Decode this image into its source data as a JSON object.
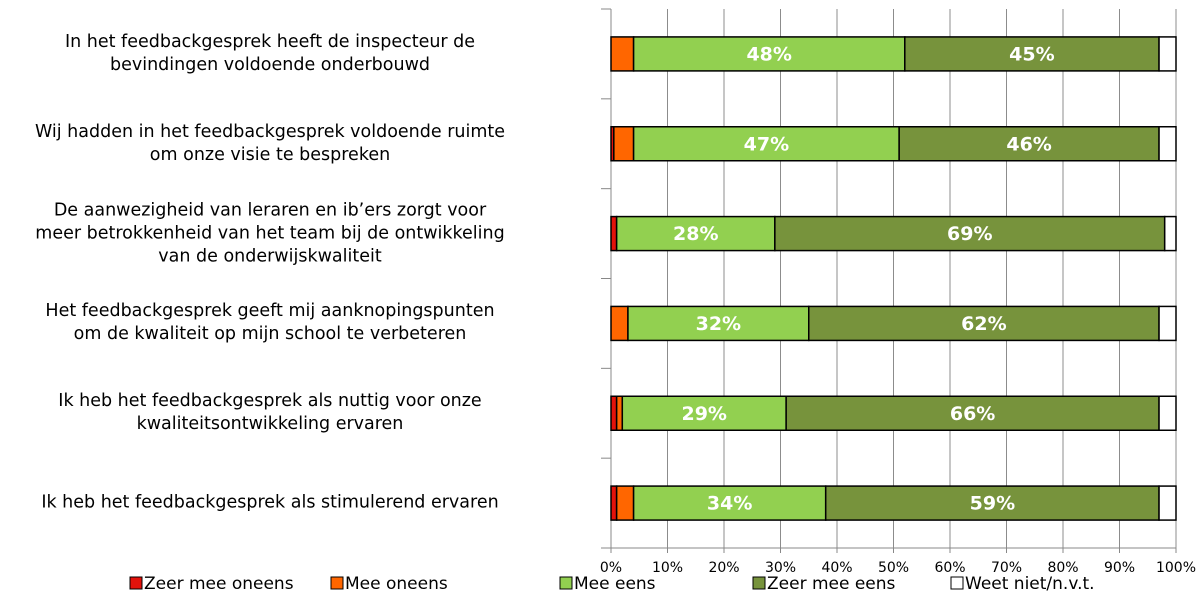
{
  "chart_data": {
    "type": "stacked-bar-horizontal",
    "categories": [
      "In het feedbackgesprek heeft de inspecteur de\nbevindingen voldoende onderbouwd",
      "Wij hadden in het feedbackgesprek voldoende ruimte\nom onze visie te bespreken",
      "De aanwezigheid van leraren en ib’ers zorgt voor\nmeer betrokkenheid van het team bij de ontwikkeling\nvan de onderwijskwaliteit",
      "Het feedbackgesprek geeft mij aanknopingspunten\nom de kwaliteit op mijn school te verbeteren",
      "Ik heb het feedbackgesprek als nuttig voor onze\nkwaliteitsontwikkeling ervaren",
      "Ik heb het feedbackgesprek als stimulerend ervaren"
    ],
    "series": [
      {
        "name": "Zeer mee oneens",
        "color": "#e3120b",
        "values": [
          0,
          0.5,
          1,
          0,
          1,
          1
        ]
      },
      {
        "name": "Mee oneens",
        "color": "#ff6600",
        "values": [
          4,
          3.5,
          0,
          3,
          1,
          3
        ]
      },
      {
        "name": "Mee eens",
        "color": "#92d050",
        "values": [
          48,
          47,
          28,
          32,
          29,
          34
        ],
        "value_labels": [
          "48%",
          "47%",
          "28%",
          "32%",
          "29%",
          "34%"
        ]
      },
      {
        "name": "Zeer mee eens",
        "color": "#77933c",
        "values": [
          45,
          46,
          69,
          62,
          66,
          59
        ],
        "value_labels": [
          "45%",
          "46%",
          "69%",
          "62%",
          "66%",
          "59%"
        ]
      },
      {
        "name": "Weet niet/n.v.t.",
        "color": "#ffffff",
        "values": [
          3,
          3,
          2,
          3,
          3,
          3
        ]
      }
    ],
    "xlim": [
      0,
      100
    ],
    "xticks": [
      {
        "value": 0,
        "label": "0%"
      },
      {
        "value": 10,
        "label": "10%"
      },
      {
        "value": 20,
        "label": "20%"
      },
      {
        "value": 30,
        "label": "30%"
      },
      {
        "value": 40,
        "label": "40%"
      },
      {
        "value": 50,
        "label": "50%"
      },
      {
        "value": 60,
        "label": "60%"
      },
      {
        "value": 70,
        "label": "70%"
      },
      {
        "value": 80,
        "label": "80%"
      },
      {
        "value": 90,
        "label": "90%"
      },
      {
        "value": 100,
        "label": "100%"
      }
    ],
    "grid": true,
    "legend": "bottom"
  }
}
